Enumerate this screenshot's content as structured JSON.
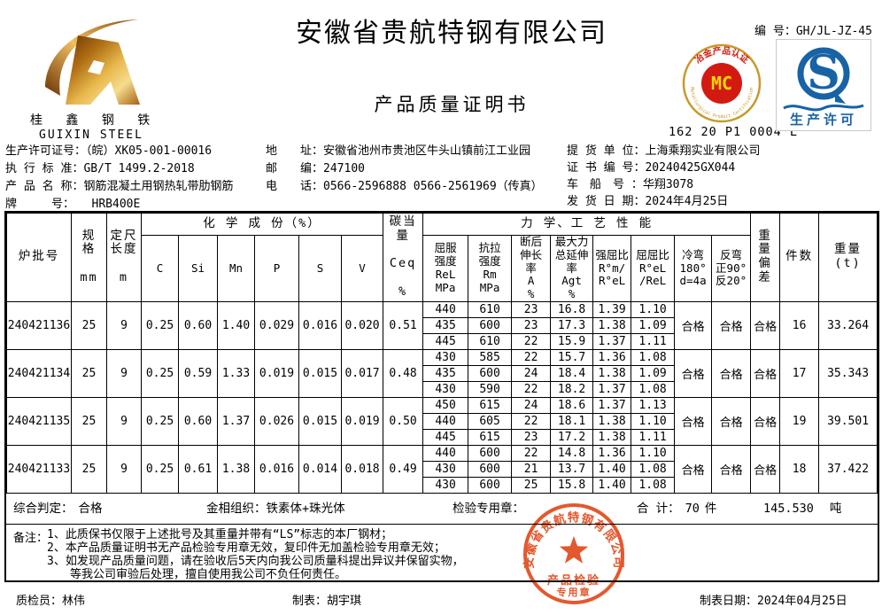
{
  "header": {
    "company_name": "安徽省贵航特钢有限公司",
    "doc_title": "产品质量证明书",
    "serial_label": "编 号：",
    "serial_value": "GH/JL-JZ-45",
    "logo_cn": "桂 鑫 钢 铁",
    "logo_en": "GUIXIN STEEL",
    "mc": {
      "abbr": "MC",
      "arc_top": "冶金产品认证",
      "arc_bottom": "Metallurgical Product Certification",
      "code": "162 20 P1 0004 L"
    },
    "qs": {
      "letter": "S",
      "caption": "生产许可"
    }
  },
  "info": {
    "left": [
      {
        "label": "生产许可证号：",
        "value": "（皖）XK05-001-00016"
      },
      {
        "label": "执 行 标 准：",
        "value": "GB/T 1499.2-2018"
      },
      {
        "label": "产 品 名 称：",
        "value": "钢筋混凝土用钢热轧带肋钢筋"
      },
      {
        "label": "牌　　　号：",
        "value": "　　HRB400E"
      }
    ],
    "middle": [
      {
        "label": "地　　址：",
        "value": "安徽省池州市贵池区牛头山镇前江工业园"
      },
      {
        "label": "邮　　编：",
        "value": "247100"
      },
      {
        "label": "电　　话：",
        "value": "0566-2596888  0566-2561969（传真）"
      }
    ],
    "right": [
      {
        "label": "提 货 单 位：",
        "value": "上海乘翔实业有限公司"
      },
      {
        "label": "证 书 编 号：",
        "value": "20240425GX044"
      },
      {
        "label": "车　船　号 ：",
        "value": "华翔3078"
      },
      {
        "label": "发 货 日 期：",
        "value": "2024年4月25日"
      }
    ]
  },
  "table": {
    "group_headers": {
      "chem": "化 学 成 份（%）",
      "mech": "力 学、工 艺 性 能"
    },
    "col_headers": {
      "batch": "炉批号",
      "spec": "规 格\n\nmm",
      "length": "定尺\n长度\n\nm",
      "chem": [
        "C",
        "Si",
        "Mn",
        "P",
        "S",
        "V"
      ],
      "ceq": "碳当量\n\nCeq\n\n%",
      "mech": [
        "屈服\n强度\nReL\nMPa",
        "抗拉\n强度\nRm\nMPa",
        "断后\n伸长\n率\nA\n%",
        "最大力\n总延伸\n率\nAgt\n%",
        "强屈比\nR°m/\nR°eL",
        "屈屈比\nR°eL\n/ReL",
        "冷弯\n180°\nd=4a",
        "反弯\n正90°\n反20°"
      ],
      "weight_dev": "重\n量\n偏\n差",
      "pieces": "件数",
      "weight": "重量\n(t)"
    },
    "rows": [
      {
        "batch": "240421136",
        "spec": "25",
        "length": "9",
        "chem": [
          "0.25",
          "0.60",
          "1.40",
          "0.029",
          "0.016",
          "0.020"
        ],
        "ceq": "0.51",
        "mech": [
          [
            "440",
            "610",
            "23",
            "16.8",
            "1.39",
            "1.10"
          ],
          [
            "435",
            "600",
            "23",
            "17.3",
            "1.38",
            "1.09"
          ],
          [
            "445",
            "610",
            "22",
            "15.9",
            "1.37",
            "1.11"
          ]
        ],
        "cold_bend": "合格",
        "reverse_bend": "合格",
        "weight_dev": "合格",
        "pieces": "16",
        "weight": "33.264"
      },
      {
        "batch": "240421134",
        "spec": "25",
        "length": "9",
        "chem": [
          "0.25",
          "0.59",
          "1.33",
          "0.019",
          "0.015",
          "0.017"
        ],
        "ceq": "0.48",
        "mech": [
          [
            "430",
            "585",
            "22",
            "15.7",
            "1.36",
            "1.08"
          ],
          [
            "435",
            "600",
            "24",
            "18.4",
            "1.38",
            "1.09"
          ],
          [
            "430",
            "590",
            "22",
            "18.2",
            "1.37",
            "1.08"
          ]
        ],
        "cold_bend": "合格",
        "reverse_bend": "合格",
        "weight_dev": "合格",
        "pieces": "17",
        "weight": "35.343"
      },
      {
        "batch": "240421135",
        "spec": "25",
        "length": "9",
        "chem": [
          "0.25",
          "0.60",
          "1.37",
          "0.026",
          "0.015",
          "0.019"
        ],
        "ceq": "0.50",
        "mech": [
          [
            "450",
            "615",
            "24",
            "18.6",
            "1.37",
            "1.13"
          ],
          [
            "440",
            "605",
            "22",
            "18.1",
            "1.38",
            "1.10"
          ],
          [
            "445",
            "615",
            "23",
            "17.2",
            "1.38",
            "1.11"
          ]
        ],
        "cold_bend": "合格",
        "reverse_bend": "合格",
        "weight_dev": "合格",
        "pieces": "19",
        "weight": "39.501"
      },
      {
        "batch": "240421133",
        "spec": "25",
        "length": "9",
        "chem": [
          "0.25",
          "0.61",
          "1.38",
          "0.016",
          "0.014",
          "0.018"
        ],
        "ceq": "0.49",
        "mech": [
          [
            "440",
            "600",
            "22",
            "14.8",
            "1.36",
            "1.10"
          ],
          [
            "430",
            "600",
            "21",
            "13.7",
            "1.40",
            "1.08"
          ],
          [
            "430",
            "600",
            "25",
            "15.8",
            "1.40",
            "1.08"
          ]
        ],
        "cold_bend": "合格",
        "reverse_bend": "合格",
        "weight_dev": "合格",
        "pieces": "18",
        "weight": "37.422"
      }
    ]
  },
  "summary": {
    "verdict_label": "综合判定：",
    "verdict": "合格",
    "structure_label": "金相组织：",
    "structure": "铁素体+珠光体",
    "stamp_label": "检验专用章：",
    "total_label": "合  计：",
    "total_pieces": "70",
    "pieces_unit": "件",
    "total_weight": "145.530",
    "weight_unit": "吨"
  },
  "remarks": {
    "label": "备注：",
    "lines": [
      "1、此质保书仅限于上述批号及其重量并带有“LS”标志的本厂钢材；",
      "2、本产品质量证明书无产品检验专用章无效，复印件无加盖检验专用章无效；",
      "3、如发现产品质量问题，请在验收后5天内向我公司质量科提出异议并保留实物，",
      "　　等我公司审验后处理，擅自使用我公司不负任何责任。"
    ]
  },
  "footer": {
    "inspector_label": "质检员：",
    "inspector": "林伟",
    "tabulator_label": "制表：",
    "tabulator": "胡宇琪",
    "date_label": "制表日期：",
    "date": "2024年04月25日"
  },
  "stamp": {
    "arc": "安徽省贵航特钢有限公司",
    "line1": "产品检验",
    "line2": "专用章"
  },
  "colors": {
    "stamp_red": "#e2491b",
    "mc_red": "#d31a10",
    "mc_gold": "#c79a2a",
    "mc_yellow": "#ffd800",
    "qs_blue": "#1763a6",
    "logo_gold": "#c98a2d"
  }
}
